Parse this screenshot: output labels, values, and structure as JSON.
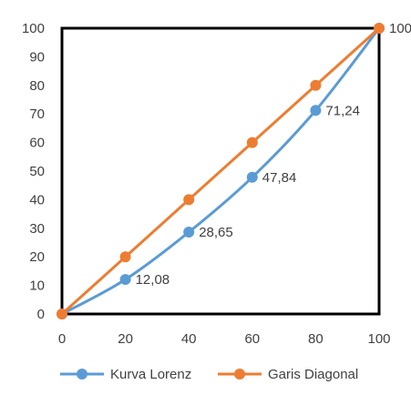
{
  "chart_data": {
    "type": "line",
    "x": [
      0,
      20,
      40,
      60,
      80,
      100
    ],
    "xlim": [
      0,
      100
    ],
    "ylim": [
      0,
      100
    ],
    "x_ticks": [
      "0",
      "20",
      "40",
      "60",
      "80",
      "100"
    ],
    "y_ticks": [
      "0",
      "10",
      "20",
      "30",
      "40",
      "50",
      "60",
      "70",
      "80",
      "90",
      "100"
    ],
    "grid": false,
    "legend_position": "bottom",
    "series": [
      {
        "name": "Kurva Lorenz",
        "color": "#5B9BD5",
        "smooth": true,
        "values": [
          0,
          12.08,
          28.65,
          47.84,
          71.24,
          100
        ],
        "labels": [
          "",
          "12,08",
          "28,65",
          "47,84",
          "71,24",
          ""
        ]
      },
      {
        "name": "Garis Diagonal",
        "color": "#ED7D31",
        "smooth": false,
        "values": [
          0,
          20,
          40,
          60,
          80,
          100
        ],
        "labels": [
          "",
          "",
          "",
          "",
          "",
          "100"
        ]
      }
    ]
  }
}
